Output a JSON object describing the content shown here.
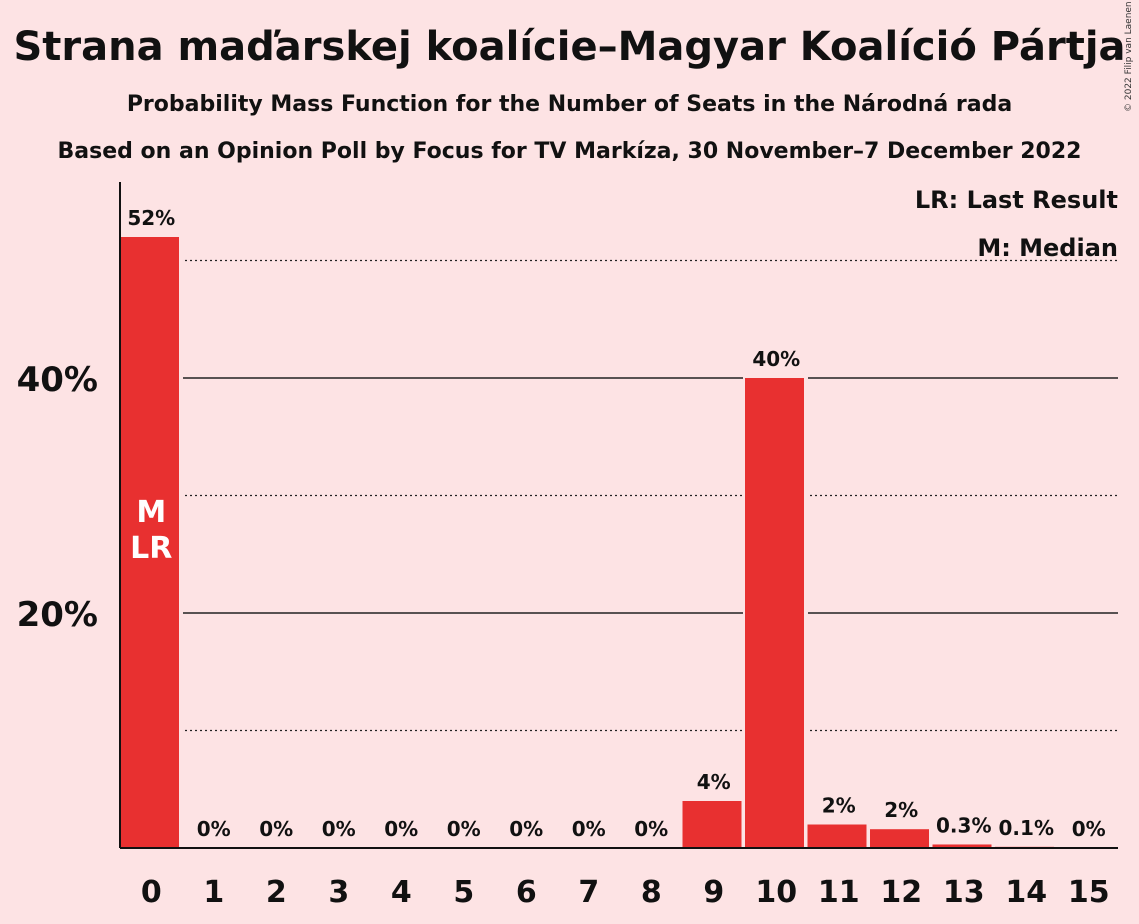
{
  "title": "Strana maďarskej koalície–Magyar Koalíció Pártja",
  "subtitle": "Probability Mass Function for the Number of Seats in the Národná rada",
  "subtitle2": "Based on an Opinion Poll by Focus for TV Markíza, 30 November–7 December 2022",
  "copyright": "© 2022 Filip van Laenen",
  "legend": {
    "last_result": "LR: Last Result",
    "median": "M: Median"
  },
  "colors": {
    "bar": "#e83030",
    "background": "#fde3e4"
  },
  "chart_data": {
    "type": "bar",
    "categories": [
      "0",
      "1",
      "2",
      "3",
      "4",
      "5",
      "6",
      "7",
      "8",
      "9",
      "10",
      "11",
      "12",
      "13",
      "14",
      "15"
    ],
    "values": [
      52,
      0,
      0,
      0,
      0,
      0,
      0,
      0,
      0,
      4,
      40,
      2,
      1.6,
      0.3,
      0.1,
      0
    ],
    "value_labels": [
      "52%",
      "0%",
      "0%",
      "0%",
      "0%",
      "0%",
      "0%",
      "0%",
      "0%",
      "4%",
      "40%",
      "2%",
      "2%",
      "0.3%",
      "0.1%",
      "0%"
    ],
    "y_ticks": [
      20,
      40
    ],
    "y_tick_labels": [
      "20%",
      "40%"
    ],
    "minor_gridlines": [
      10,
      30,
      50
    ],
    "ylim": [
      0,
      56
    ],
    "median_index": 0,
    "last_result_index": 0,
    "median_marker": "M",
    "last_result_marker": "LR"
  }
}
